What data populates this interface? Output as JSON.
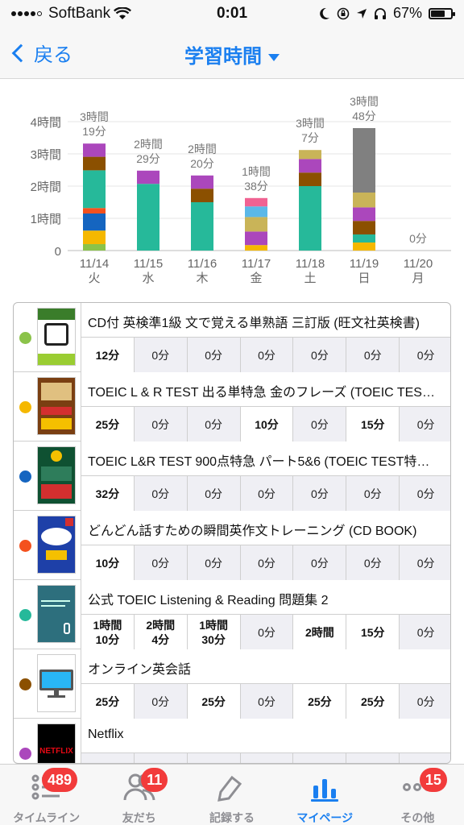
{
  "status": {
    "carrier": "SoftBank",
    "time": "0:01",
    "battery": "67%",
    "battery_fraction": 0.67
  },
  "nav": {
    "back_label": "戻る",
    "title": "学習時間"
  },
  "chart_data": {
    "type": "bar",
    "stacked": true,
    "yticks": [
      "0",
      "1時間",
      "2時間",
      "3時間",
      "4時間"
    ],
    "ylim": [
      0,
      4.4
    ],
    "categories": [
      {
        "date": "11/14",
        "day": "火",
        "total_h": "3時間",
        "total_m": "19分",
        "total": 3.32,
        "segments": [
          {
            "color": "#8bc34a",
            "value": 0.2
          },
          {
            "color": "#f5b800",
            "value": 0.42
          },
          {
            "color": "#1565c0",
            "value": 0.53
          },
          {
            "color": "#f4511e",
            "value": 0.17
          },
          {
            "color": "#26b99a",
            "value": 1.17
          },
          {
            "color": "#8b5000",
            "value": 0.42
          },
          {
            "color": "#ab47bc",
            "value": 0.41
          }
        ]
      },
      {
        "date": "11/15",
        "day": "水",
        "total_h": "2時間",
        "total_m": "29分",
        "total": 2.48,
        "segments": [
          {
            "color": "#26b99a",
            "value": 2.07
          },
          {
            "color": "#ab47bc",
            "value": 0.41
          }
        ]
      },
      {
        "date": "11/16",
        "day": "木",
        "total_h": "2時間",
        "total_m": "20分",
        "total": 2.33,
        "segments": [
          {
            "color": "#26b99a",
            "value": 1.5
          },
          {
            "color": "#8b5000",
            "value": 0.42
          },
          {
            "color": "#ab47bc",
            "value": 0.41
          }
        ]
      },
      {
        "date": "11/17",
        "day": "金",
        "total_h": "1時間",
        "total_m": "38分",
        "total": 1.63,
        "segments": [
          {
            "color": "#f5b800",
            "value": 0.17
          },
          {
            "color": "#ab47bc",
            "value": 0.42
          },
          {
            "color": "#c9b458",
            "value": 0.45
          },
          {
            "color": "#5bb8e8",
            "value": 0.33
          },
          {
            "color": "#f06292",
            "value": 0.26
          }
        ]
      },
      {
        "date": "11/18",
        "day": "土",
        "total_h": "3時間",
        "total_m": "7分",
        "total": 3.12,
        "segments": [
          {
            "color": "#26b99a",
            "value": 2.0
          },
          {
            "color": "#8b5000",
            "value": 0.42
          },
          {
            "color": "#ab47bc",
            "value": 0.42
          },
          {
            "color": "#c9b458",
            "value": 0.28
          }
        ]
      },
      {
        "date": "11/19",
        "day": "日",
        "total_h": "3時間",
        "total_m": "48分",
        "total": 3.8,
        "segments": [
          {
            "color": "#f5b800",
            "value": 0.25
          },
          {
            "color": "#26b99a",
            "value": 0.25
          },
          {
            "color": "#8b5000",
            "value": 0.42
          },
          {
            "color": "#ab47bc",
            "value": 0.42
          },
          {
            "color": "#c9b458",
            "value": 0.46
          },
          {
            "color": "#808080",
            "value": 2.0
          }
        ]
      },
      {
        "date": "11/20",
        "day": "月",
        "total_h": "",
        "total_m": "0分",
        "total": 0,
        "segments": []
      }
    ]
  },
  "books": [
    {
      "title": "CD付 英検準1級 文で覚える単熟語 三訂版 (旺文社英検書)",
      "color": "#8bc34a",
      "cover": "eiken-cover",
      "cells": [
        "12分",
        "0分",
        "0分",
        "0分",
        "0分",
        "0分",
        "0分"
      ],
      "active": [
        true,
        false,
        false,
        false,
        false,
        false,
        false
      ]
    },
    {
      "title": "TOEIC L & R TEST 出る単特急 金のフレーズ (TOEIC TEST特急シリーズ)",
      "color": "#f5b800",
      "cover": "kinfre-cover",
      "cells": [
        "25分",
        "0分",
        "0分",
        "10分",
        "0分",
        "15分",
        "0分"
      ],
      "active": [
        true,
        false,
        false,
        true,
        false,
        true,
        false
      ]
    },
    {
      "title": "TOEIC L&R TEST 900点特急 パート5&6 (TOEIC TEST特急シリーズ)",
      "color": "#1565c0",
      "cover": "part56-cover",
      "cells": [
        "32分",
        "0分",
        "0分",
        "0分",
        "0分",
        "0分",
        "0分"
      ],
      "active": [
        true,
        false,
        false,
        false,
        false,
        false,
        false
      ]
    },
    {
      "title": "どんどん話すための瞬間英作文トレーニング (CD BOOK)",
      "color": "#f4511e",
      "cover": "dondon-cover",
      "cells": [
        "10分",
        "0分",
        "0分",
        "0分",
        "0分",
        "0分",
        "0分"
      ],
      "active": [
        true,
        false,
        false,
        false,
        false,
        false,
        false
      ]
    },
    {
      "title": "公式 TOEIC Listening & Reading 問題集 2",
      "color": "#26b99a",
      "cover": "official-cover",
      "cells": [
        "1時間\n10分",
        "2時間\n4分",
        "1時間\n30分",
        "0分",
        "2時間",
        "15分",
        "0分"
      ],
      "active": [
        true,
        true,
        true,
        false,
        true,
        true,
        false
      ]
    },
    {
      "title": "オンライン英会話",
      "color": "#8b5000",
      "cover": "monitor-icon",
      "cells": [
        "25分",
        "0分",
        "25分",
        "0分",
        "25分",
        "25分",
        "0分"
      ],
      "active": [
        true,
        false,
        true,
        false,
        true,
        true,
        false
      ]
    },
    {
      "title": "Netflix",
      "color": "#ab47bc",
      "cover": "netflix-logo",
      "cells": [
        "",
        "",
        "",
        "",
        "",
        "",
        ""
      ],
      "active": [
        false,
        false,
        false,
        false,
        false,
        false,
        false
      ]
    }
  ],
  "netflix_logo_text": "NETFLIX",
  "tabs": [
    {
      "label": "タイムライン",
      "badge": "489",
      "icon": "timeline-icon"
    },
    {
      "label": "友だち",
      "badge": "11",
      "icon": "friends-icon"
    },
    {
      "label": "記録する",
      "badge": "",
      "icon": "record-icon"
    },
    {
      "label": "マイページ",
      "badge": "",
      "icon": "mypage-icon",
      "active": true
    },
    {
      "label": "その他",
      "badge": "15",
      "icon": "more-icon"
    }
  ]
}
